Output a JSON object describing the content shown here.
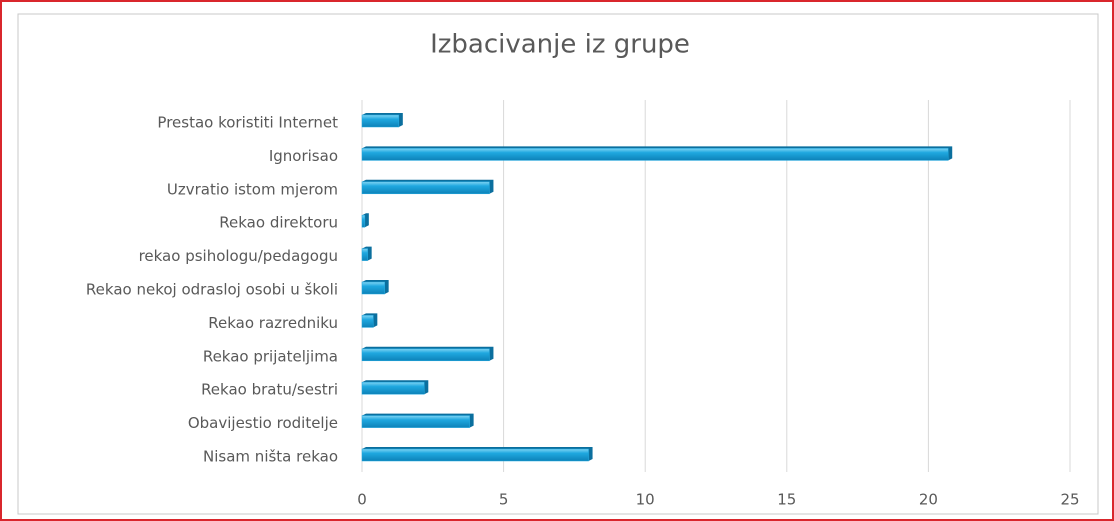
{
  "chart_data": {
    "type": "bar",
    "orientation": "horizontal",
    "title": "Izbacivanje iz grupe",
    "categories": [
      "Prestao koristiti Internet",
      "Ignorisao",
      "Uzvratio istom mjerom",
      "Rekao direktoru",
      "rekao psihologu/pedagogu",
      "Rekao nekoj odrasloj osobi u školi",
      "Rekao razredniku",
      "Rekao prijateljima",
      "Rekao bratu/sestri",
      "Obavijestio roditelje",
      "Nisam ništa rekao"
    ],
    "values": [
      1.3,
      20.7,
      4.5,
      0.1,
      0.2,
      0.8,
      0.4,
      4.5,
      2.2,
      3.8,
      8
    ],
    "color": "#1fa8e0",
    "xlim": [
      0,
      25
    ],
    "xticks": [
      0,
      5,
      10,
      15,
      20,
      25
    ],
    "grid": true
  }
}
